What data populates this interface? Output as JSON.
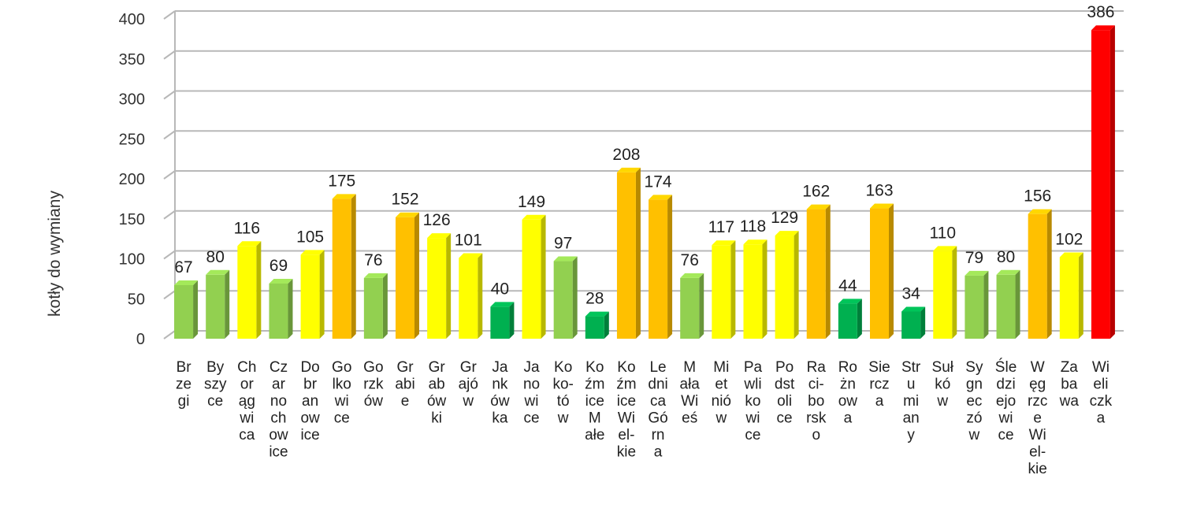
{
  "chart_data": {
    "type": "bar",
    "ylabel": "kotły do wymiany",
    "ylim": [
      0,
      400
    ],
    "yticks": [
      "0",
      "50",
      "100",
      "150",
      "200",
      "250",
      "300",
      "350",
      "400"
    ],
    "grid": true,
    "categories": [
      "Brzegi",
      "Byszyce",
      "Chorągwica",
      "Czarnochowice",
      "Dobranowice",
      "Golkowice",
      "Gorzków",
      "Grabie",
      "Grabówki",
      "Grajów",
      "Jankówka",
      "Janowice",
      "Kokotów",
      "Koźmice Małe",
      "Koźmice Wielkie",
      "Lednica Górna",
      "Mała Wieś",
      "Mietniów",
      "Pawlikowice",
      "Podstolice",
      "Raciborsko",
      "Rożnowa",
      "Sierczа",
      "Strumiany",
      "Sułków",
      "Sygneczów",
      "Śledziejowice",
      "Węgrzce Wielkie",
      "Zabawa",
      "Wieliczka"
    ],
    "category_lines": [
      [
        "Br",
        "ze",
        "gi"
      ],
      [
        "By",
        "szy",
        "ce"
      ],
      [
        "Ch",
        "or",
        "ąg",
        "wi",
        "ca"
      ],
      [
        "Cz",
        "ar",
        "no",
        "ch",
        "ow",
        "ice"
      ],
      [
        "Do",
        "br",
        "an",
        "ow",
        "ice"
      ],
      [
        "Go",
        "lko",
        "wi",
        "ce"
      ],
      [
        "Go",
        "rzk",
        "ów"
      ],
      [
        "Gr",
        "abi",
        "e"
      ],
      [
        "Gr",
        "ab",
        "ów",
        "ki"
      ],
      [
        "Gr",
        "ajó",
        "w"
      ],
      [
        "Ja",
        "nk",
        "ów",
        "ka"
      ],
      [
        "Ja",
        "no",
        "wi",
        "ce"
      ],
      [
        "Ko",
        "ko-",
        "tó",
        "w"
      ],
      [
        "Ko",
        "źm",
        "ice",
        "M",
        "ałe"
      ],
      [
        "Ko",
        "źm",
        "ice",
        "Wi",
        "el-",
        "kie"
      ],
      [
        "Le",
        "dni",
        "ca",
        "Gó",
        "rn",
        "a"
      ],
      [
        "M",
        "ała",
        "Wi",
        "eś"
      ],
      [
        "Mi",
        "et",
        "nió",
        "w"
      ],
      [
        "Pa",
        "wli",
        "ko",
        "wi",
        "ce"
      ],
      [
        "Po",
        "dst",
        "oli",
        "ce"
      ],
      [
        "Ra",
        "ci-",
        "bo",
        "rsk",
        "o"
      ],
      [
        "Ro",
        "żn",
        "ow",
        "a"
      ],
      [
        "Sie",
        "rcz",
        "a"
      ],
      [
        "Str",
        "u",
        "mi",
        "an",
        "y"
      ],
      [
        "Suł",
        "kó",
        "w"
      ],
      [
        "Sy",
        "gn",
        "ec",
        "zó",
        "w"
      ],
      [
        "Śle",
        "dzi",
        "ejo",
        "wi",
        "ce"
      ],
      [
        "W",
        "ęg",
        "rzc",
        "e",
        "Wi",
        "el-",
        "kie"
      ],
      [
        "Za",
        "ba",
        "wa"
      ],
      [
        "Wi",
        "eli",
        "czk",
        "a"
      ]
    ],
    "values": [
      67,
      80,
      116,
      69,
      105,
      175,
      76,
      152,
      126,
      101,
      40,
      149,
      97,
      28,
      208,
      174,
      76,
      117,
      118,
      129,
      162,
      44,
      163,
      34,
      110,
      79,
      80,
      156,
      102,
      386
    ],
    "data_labels": [
      "67",
      "80",
      "116",
      "69",
      "105",
      "175",
      "76",
      "152",
      "126",
      "101",
      "40",
      "149",
      "97",
      "28",
      "208",
      "174",
      "76",
      "117",
      "118",
      "129",
      "162",
      "44",
      "163",
      "34",
      "110",
      "79",
      "80",
      "156",
      "102",
      "386"
    ],
    "colors": [
      "#92d050",
      "#92d050",
      "#ffff00",
      "#92d050",
      "#ffff00",
      "#ffc000",
      "#92d050",
      "#ffc000",
      "#ffff00",
      "#ffff00",
      "#00b050",
      "#ffff00",
      "#92d050",
      "#00b050",
      "#ffc000",
      "#ffc000",
      "#92d050",
      "#ffff00",
      "#ffff00",
      "#ffff00",
      "#ffc000",
      "#00b050",
      "#ffc000",
      "#00b050",
      "#ffff00",
      "#92d050",
      "#92d050",
      "#ffc000",
      "#ffff00",
      "#ff0000"
    ]
  }
}
